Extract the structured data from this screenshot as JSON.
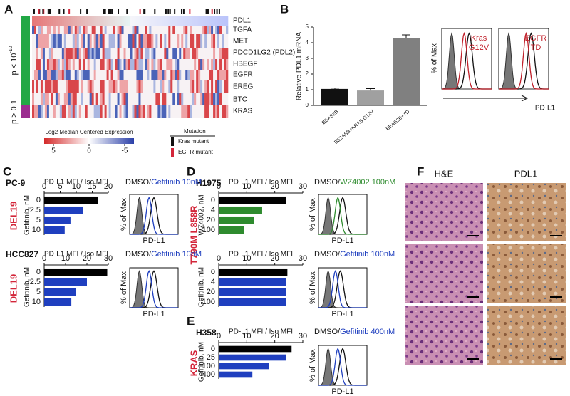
{
  "panel_labels": [
    "A",
    "B",
    "C",
    "D",
    "E",
    "F"
  ],
  "heatmap": {
    "genes": [
      "PDL1",
      "TGFA",
      "MET",
      "PDCD1LG2 (PDL2)",
      "HBEGF",
      "EGFR",
      "EREG",
      "BTC",
      "KRAS"
    ],
    "group_top": {
      "base": "p < 10",
      "exponent": "-10"
    },
    "group_bottom": "p > 0.1",
    "colorbar": {
      "title": "Log2 Median Centered Expression",
      "ticks": [
        5,
        0,
        -5
      ]
    },
    "mutation": {
      "title": "Mutation",
      "items": [
        "Kras mutant",
        "EGFR mutant"
      ]
    }
  },
  "chart_data": [
    {
      "type": "bar",
      "y_label": "Relative PDL1 mRNA",
      "categories": [
        "BEAS2B",
        "BE2ASB+KRAS G12V",
        "BEAS2B+TD"
      ],
      "values": [
        1.05,
        0.95,
        4.3
      ],
      "errors": [
        0.05,
        0.12,
        0.2
      ],
      "colors": [
        "#111111",
        "#a0a0a0",
        "#808080"
      ],
      "ylim": [
        0,
        5
      ],
      "yticks": [
        0,
        1,
        2,
        3,
        4,
        5
      ]
    },
    {
      "type": "barh",
      "label": "PC-9",
      "mutation": "DEL19",
      "title": "PD-L1 MFI / Iso MFI",
      "y_label": "Gefitinib, nM",
      "categories": [
        "0",
        "2.5",
        "5",
        "10"
      ],
      "values": [
        16.7,
        12.2,
        8.2,
        6.4
      ],
      "colors": [
        "#000000",
        "#1f3fbf",
        "#1f3fbf",
        "#1f3fbf"
      ],
      "xlim": [
        0,
        20
      ],
      "xticks": [
        0,
        5,
        10,
        15,
        20
      ]
    },
    {
      "type": "barh",
      "label": "HCC827",
      "mutation": "DEL19",
      "title": "PD-L1 MFI / Iso MFI",
      "y_label": "Gefitinib, nM",
      "categories": [
        "0",
        "2.5",
        "5",
        "10"
      ],
      "values": [
        29.5,
        20,
        15,
        12.7
      ],
      "colors": [
        "#000000",
        "#1f3fbf",
        "#1f3fbf",
        "#1f3fbf"
      ],
      "xlim": [
        0,
        30
      ],
      "xticks": [
        0,
        10,
        20,
        30
      ]
    },
    {
      "type": "barh",
      "label": "H1975",
      "mutation": "T790M L858R",
      "title": "PD-L1 MFI / Iso MFI",
      "y_label": "WZ4002, nM",
      "categories": [
        "0",
        "4",
        "20",
        "100"
      ],
      "values": [
        24,
        15.5,
        12.5,
        9
      ],
      "colors": [
        "#000000",
        "#2e8b2e",
        "#2e8b2e",
        "#2e8b2e"
      ],
      "xlim": [
        0,
        30
      ],
      "xticks": [
        0,
        10,
        20,
        30
      ]
    },
    {
      "type": "barh",
      "title": "PD-L1 MFI / Iso MFI",
      "y_label": "Gefitinib, nM",
      "categories": [
        "0",
        "4",
        "20",
        "100"
      ],
      "values": [
        24.5,
        24,
        24,
        24
      ],
      "colors": [
        "#000000",
        "#1f3fbf",
        "#1f3fbf",
        "#1f3fbf"
      ],
      "xlim": [
        0,
        30
      ],
      "xticks": [
        0,
        10,
        20,
        30
      ]
    },
    {
      "type": "barh",
      "label": "H358",
      "mutation": "KRAS",
      "title": "PD-L1 MFI / Iso MFI",
      "y_label": "Gefitinib, nM",
      "categories": [
        "0",
        "25",
        "100",
        "400"
      ],
      "values": [
        26,
        24,
        18,
        12
      ],
      "colors": [
        "#000000",
        "#1f3fbf",
        "#1f3fbf",
        "#1f3fbf"
      ],
      "xlim": [
        0,
        30
      ],
      "xticks": [
        0,
        10,
        20,
        30
      ]
    }
  ],
  "flow_b": {
    "y_label": "% of Max",
    "x_label": "PD-L1",
    "color": "#c0202a",
    "boxes": [
      [
        "Kras",
        "G12V"
      ],
      [
        "EGFR",
        "TD"
      ]
    ]
  },
  "flow": [
    {
      "prefix": "DMSO/",
      "treatment": "Gefitinib 10nM",
      "color": "#1f3fbf",
      "y_label": "% of Max",
      "x_label": "PD-L1"
    },
    {
      "prefix": "DMSO/",
      "treatment": "Gefitinib 10nM",
      "color": "#1f3fbf",
      "y_label": "% of Max",
      "x_label": "PD-L1"
    },
    {
      "prefix": "DMSO/",
      "treatment": "WZ4002 100nM",
      "color": "#2e8b2e",
      "y_label": "% of Max",
      "x_label": "PD-L1"
    },
    {
      "prefix": "DMSO/",
      "treatment": "Gefitinib 100nM",
      "color": "#1f3fbf",
      "y_label": "% of Max",
      "x_label": "PD-L1"
    },
    {
      "prefix": "DMSO/",
      "treatment": "Gefitinib 400nM",
      "color": "#1f3fbf",
      "y_label": "% of Max",
      "x_label": "PD-L1"
    }
  ],
  "histology": {
    "columns": [
      "H&E",
      "PDL1"
    ]
  }
}
